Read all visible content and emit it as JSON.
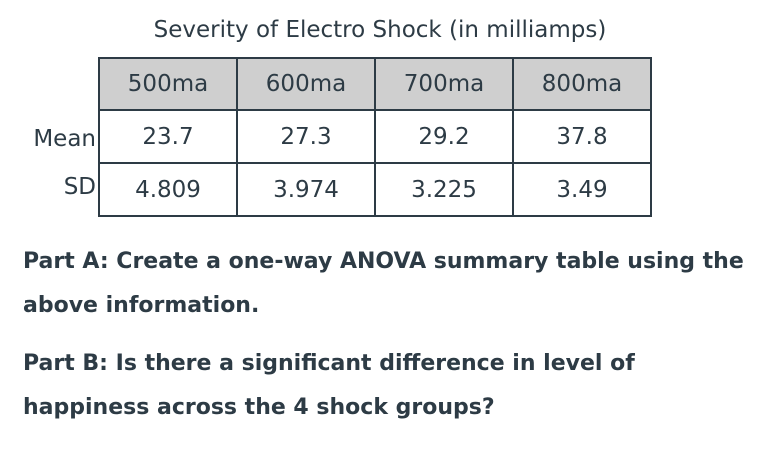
{
  "title": "Severity of Electro Shock (in milliamps)",
  "table": {
    "columns": [
      "500ma",
      "600ma",
      "700ma",
      "800ma"
    ],
    "rows": [
      {
        "label": "Mean",
        "values": [
          "23.7",
          "27.3",
          "29.2",
          "37.8"
        ]
      },
      {
        "label": "SD",
        "values": [
          "4.809",
          "3.974",
          "3.225",
          "3.49"
        ]
      }
    ]
  },
  "parts": {
    "a": "Part A:  Create a one-way ANOVA summary table using the above information.",
    "b": "Part B:  Is there a significant difference in level of happiness across the 4 shock groups?"
  }
}
